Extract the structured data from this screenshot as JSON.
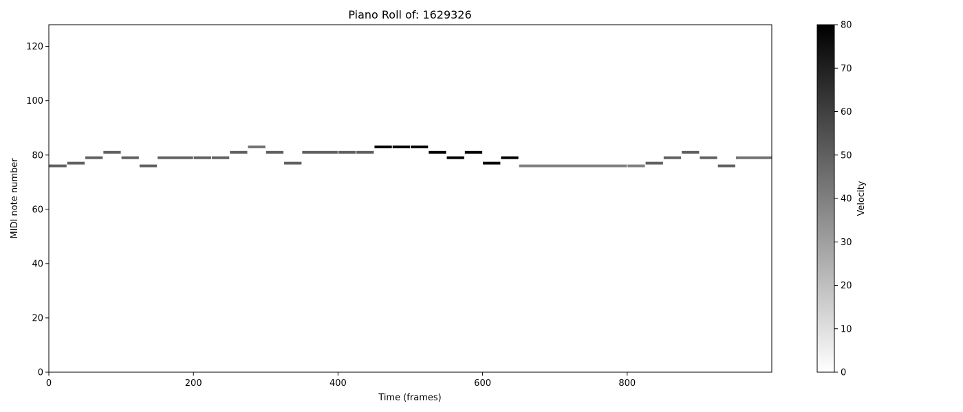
{
  "chart_data": {
    "type": "heatmap",
    "title": "Piano Roll of: 1629326",
    "xlabel": "Time (frames)",
    "ylabel": "MIDI note number",
    "xlim": [
      0,
      1000
    ],
    "ylim": [
      0,
      128
    ],
    "x_ticks": [
      0,
      200,
      400,
      600,
      800
    ],
    "y_ticks": [
      0,
      20,
      40,
      60,
      80,
      100,
      120
    ],
    "grid": false,
    "colormap": "gray_r",
    "colorbar": {
      "label": "Velocity",
      "range": [
        0,
        80
      ],
      "ticks": [
        0,
        10,
        20,
        30,
        40,
        50,
        60,
        70,
        80
      ]
    },
    "notes": [
      {
        "start": 0,
        "end": 25,
        "pitch": 76,
        "velocity": 50
      },
      {
        "start": 25,
        "end": 50,
        "pitch": 77,
        "velocity": 50
      },
      {
        "start": 50,
        "end": 75,
        "pitch": 79,
        "velocity": 50
      },
      {
        "start": 75,
        "end": 100,
        "pitch": 81,
        "velocity": 50
      },
      {
        "start": 100,
        "end": 125,
        "pitch": 79,
        "velocity": 50
      },
      {
        "start": 125,
        "end": 150,
        "pitch": 76,
        "velocity": 50
      },
      {
        "start": 150,
        "end": 200,
        "pitch": 79,
        "velocity": 50
      },
      {
        "start": 200,
        "end": 225,
        "pitch": 79,
        "velocity": 50
      },
      {
        "start": 225,
        "end": 250,
        "pitch": 79,
        "velocity": 50
      },
      {
        "start": 250,
        "end": 275,
        "pitch": 81,
        "velocity": 50
      },
      {
        "start": 275,
        "end": 300,
        "pitch": 83,
        "velocity": 45
      },
      {
        "start": 300,
        "end": 325,
        "pitch": 81,
        "velocity": 50
      },
      {
        "start": 325,
        "end": 350,
        "pitch": 77,
        "velocity": 50
      },
      {
        "start": 350,
        "end": 400,
        "pitch": 81,
        "velocity": 50
      },
      {
        "start": 400,
        "end": 425,
        "pitch": 81,
        "velocity": 50
      },
      {
        "start": 425,
        "end": 450,
        "pitch": 81,
        "velocity": 50
      },
      {
        "start": 450,
        "end": 475,
        "pitch": 83,
        "velocity": 80
      },
      {
        "start": 475,
        "end": 500,
        "pitch": 83,
        "velocity": 80
      },
      {
        "start": 500,
        "end": 525,
        "pitch": 83,
        "velocity": 80
      },
      {
        "start": 525,
        "end": 550,
        "pitch": 81,
        "velocity": 80
      },
      {
        "start": 550,
        "end": 575,
        "pitch": 79,
        "velocity": 80
      },
      {
        "start": 575,
        "end": 600,
        "pitch": 81,
        "velocity": 80
      },
      {
        "start": 600,
        "end": 625,
        "pitch": 77,
        "velocity": 80
      },
      {
        "start": 625,
        "end": 650,
        "pitch": 79,
        "velocity": 80
      },
      {
        "start": 650,
        "end": 800,
        "pitch": 76,
        "velocity": 40
      },
      {
        "start": 800,
        "end": 825,
        "pitch": 76,
        "velocity": 40
      },
      {
        "start": 825,
        "end": 850,
        "pitch": 77,
        "velocity": 50
      },
      {
        "start": 850,
        "end": 875,
        "pitch": 79,
        "velocity": 50
      },
      {
        "start": 875,
        "end": 900,
        "pitch": 81,
        "velocity": 50
      },
      {
        "start": 900,
        "end": 925,
        "pitch": 79,
        "velocity": 50
      },
      {
        "start": 925,
        "end": 950,
        "pitch": 76,
        "velocity": 50
      },
      {
        "start": 950,
        "end": 1000,
        "pitch": 79,
        "velocity": 45
      }
    ]
  }
}
